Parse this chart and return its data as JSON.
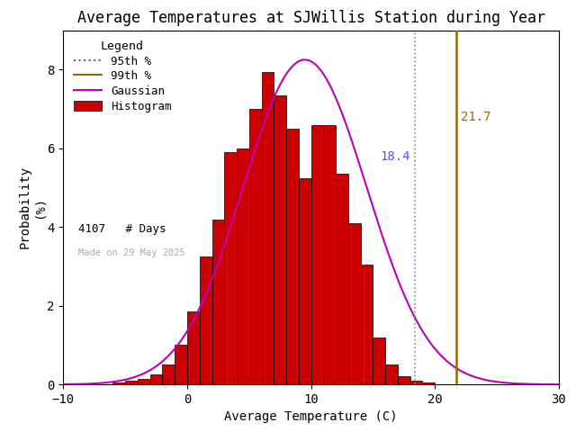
{
  "title": "Average Temperatures at SJWillis Station during Year",
  "xlabel": "Average Temperature (C)",
  "ylabel": "Probability\n(%)",
  "xlim": [
    -10,
    30
  ],
  "ylim": [
    0,
    9
  ],
  "yticks": [
    0,
    2,
    4,
    6,
    8
  ],
  "xticks": [
    -10,
    0,
    10,
    20,
    30
  ],
  "bar_left_edges": [
    -8,
    -7,
    -6,
    -5,
    -4,
    -3,
    -2,
    -1,
    0,
    1,
    2,
    3,
    4,
    5,
    6,
    7,
    8,
    9,
    10,
    11,
    12,
    13,
    14,
    15,
    16,
    17,
    18,
    19,
    20,
    21,
    22,
    23,
    24
  ],
  "bar_heights": [
    0.0,
    0.0,
    0.05,
    0.1,
    0.15,
    0.25,
    0.5,
    1.0,
    1.85,
    3.25,
    4.2,
    5.9,
    6.0,
    7.0,
    7.95,
    7.35,
    6.5,
    5.25,
    6.6,
    6.6,
    5.35,
    4.1,
    3.05,
    1.2,
    0.5,
    0.2,
    0.1,
    0.05,
    0.0,
    0.0,
    0.0,
    0.0,
    0.0
  ],
  "bar_color": "#cc0000",
  "bar_edgecolor": "#000000",
  "gaussian_color": "#bb00bb",
  "gaussian_mean": 9.5,
  "gaussian_std": 5.0,
  "gaussian_peak": 8.25,
  "pct95_value": 18.4,
  "pct99_value": 21.7,
  "pct95_color": "#5555ff",
  "pct99_color": "#996600",
  "pct95_line_color": "#888888",
  "pct99_line_color": "#996600",
  "num_days": 4107,
  "made_on": "Made on 29 May 2025",
  "made_on_color": "#aaaaaa",
  "bg_color": "#ffffff",
  "legend_title": "Legend",
  "title_fontsize": 12,
  "axis_fontsize": 10,
  "tick_fontsize": 10,
  "annot_fontsize": 10
}
